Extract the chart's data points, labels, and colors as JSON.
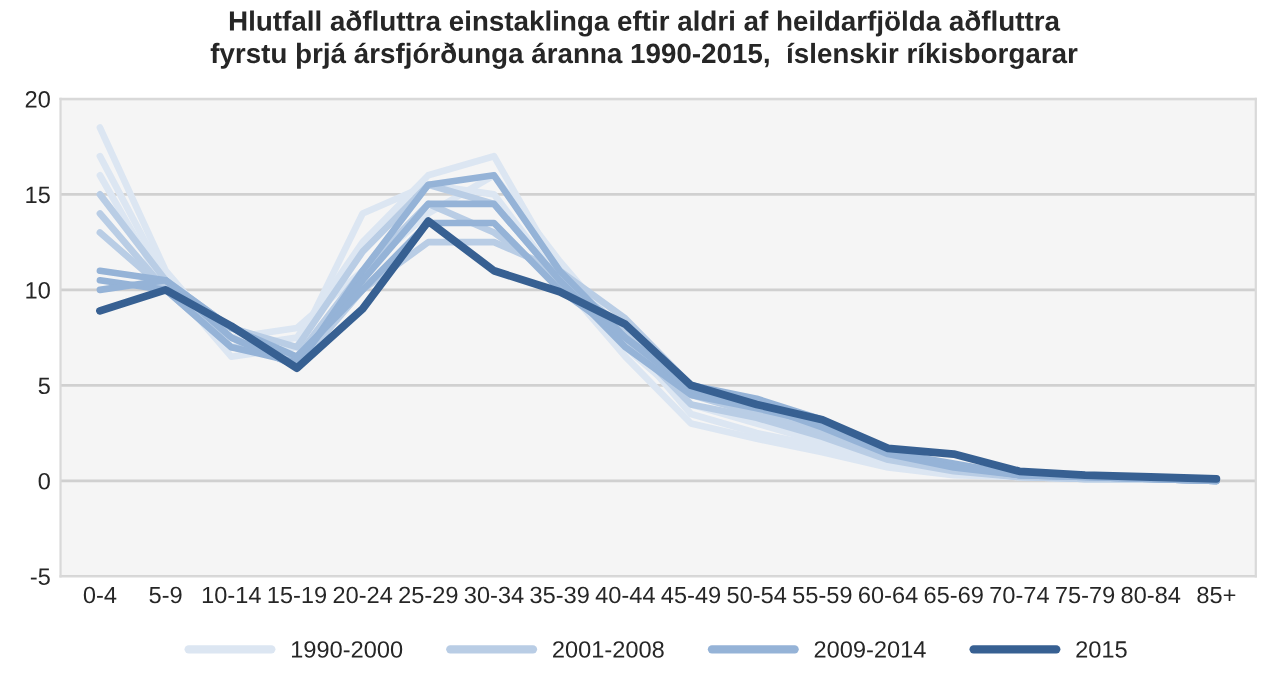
{
  "chart_data": {
    "type": "line",
    "title": "Hlutfall aðfluttra einstaklinga eftir aldri af heildarfjölda aðfluttra\nfyrstu þrjá ársfjórðunga áranna 1990-2015,  íslenskir ríkisborgarar",
    "categories": [
      "0-4",
      "5-9",
      "10-14",
      "15-19",
      "20-24",
      "25-29",
      "30-34",
      "35-39",
      "40-44",
      "45-49",
      "50-54",
      "55-59",
      "60-64",
      "65-69",
      "70-74",
      "75-79",
      "80-84",
      "85+"
    ],
    "series": [
      {
        "name": "1990-2000",
        "color": "#dce6f2",
        "values": [
          18.5,
          11.0,
          7.0,
          7.5,
          12.5,
          16.0,
          17.0,
          11.0,
          7.0,
          4.0,
          3.0,
          2.0,
          1.0,
          0.4,
          0.2,
          0.1,
          0.1,
          0.0
        ]
      },
      {
        "name": null,
        "color": "#dce6f2",
        "values": [
          17.0,
          10.5,
          6.5,
          7.0,
          14.0,
          15.5,
          15.0,
          10.5,
          6.5,
          3.0,
          2.2,
          1.5,
          0.7,
          0.3,
          0.2,
          0.1,
          0.1,
          0.0
        ]
      },
      {
        "name": null,
        "color": "#dce6f2",
        "values": [
          16.0,
          10.0,
          7.5,
          8.0,
          11.0,
          14.0,
          16.0,
          11.5,
          7.5,
          3.5,
          2.5,
          1.8,
          0.8,
          0.4,
          0.2,
          0.1,
          0.1,
          0.0
        ]
      },
      {
        "name": "2001-2008",
        "color": "#b9cde5",
        "values": [
          15.0,
          10.5,
          8.0,
          7.0,
          12.0,
          15.5,
          14.5,
          10.5,
          7.5,
          4.0,
          3.3,
          2.3,
          1.1,
          0.5,
          0.2,
          0.1,
          0.1,
          0.0
        ]
      },
      {
        "name": null,
        "color": "#b9cde5",
        "values": [
          14.0,
          10.0,
          7.0,
          6.5,
          11.0,
          14.5,
          13.0,
          10.5,
          8.0,
          4.5,
          3.5,
          2.5,
          1.2,
          0.6,
          0.2,
          0.1,
          0.1,
          0.0
        ]
      },
      {
        "name": null,
        "color": "#b9cde5",
        "values": [
          13.0,
          10.0,
          7.5,
          6.0,
          10.0,
          12.5,
          12.5,
          11.0,
          8.5,
          5.0,
          3.8,
          2.8,
          1.3,
          0.6,
          0.3,
          0.1,
          0.1,
          0.0
        ]
      },
      {
        "name": "2009-2014",
        "color": "#95b3d7",
        "values": [
          11.0,
          10.5,
          7.5,
          6.0,
          11.0,
          15.5,
          16.0,
          11.0,
          7.5,
          5.0,
          4.3,
          3.2,
          1.6,
          0.8,
          0.3,
          0.2,
          0.1,
          0.0
        ]
      },
      {
        "name": null,
        "color": "#95b3d7",
        "values": [
          10.5,
          10.0,
          7.0,
          6.2,
          10.5,
          14.5,
          14.5,
          10.5,
          7.0,
          4.5,
          3.8,
          3.0,
          1.5,
          0.9,
          0.3,
          0.2,
          0.1,
          0.0
        ]
      },
      {
        "name": null,
        "color": "#95b3d7",
        "values": [
          10.0,
          10.5,
          8.0,
          6.5,
          10.0,
          13.5,
          13.5,
          10.0,
          7.5,
          4.8,
          4.0,
          2.8,
          1.4,
          0.7,
          0.3,
          0.2,
          0.1,
          0.0
        ]
      },
      {
        "name": "2015",
        "color": "#376092",
        "values": [
          8.9,
          10.0,
          8.1,
          5.9,
          9.0,
          13.6,
          11.0,
          9.9,
          8.2,
          5.0,
          4.0,
          3.2,
          1.7,
          1.4,
          0.5,
          0.3,
          0.2,
          0.1
        ]
      }
    ],
    "ylim": [
      -5,
      20
    ],
    "yticks": [
      -5,
      0,
      5,
      10,
      15,
      20
    ],
    "grid": "y",
    "legend": "bottom",
    "marker": "none",
    "line_style": "solid"
  }
}
